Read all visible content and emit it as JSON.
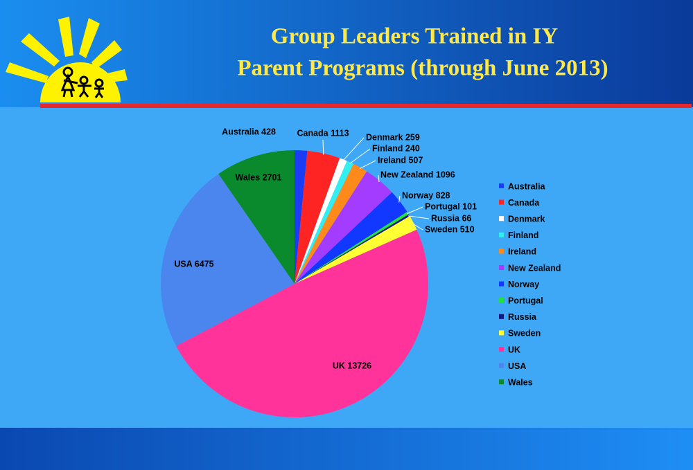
{
  "chart_data": {
    "type": "pie",
    "title": [
      "Group Leaders Trained in IY",
      "Parent Programs (through June 2013)"
    ],
    "categories": [
      "Australia",
      "Canada",
      "Denmark",
      "Finland",
      "Ireland",
      "New Zealand",
      "Norway",
      "Portugal",
      "Russia",
      "Sweden",
      "UK",
      "USA",
      "Wales"
    ],
    "values": [
      428,
      1113,
      259,
      240,
      507,
      1096,
      828,
      101,
      66,
      510,
      13726,
      6475,
      2701
    ],
    "value_labels": [
      "Australia 428",
      "Canada 1113",
      "Denmark 259",
      "Finland 240",
      "Ireland 507",
      "New Zealand 1096",
      "Norway 828",
      "Portugal 101",
      "Russia 66",
      "Sweden 510",
      "UK 13726",
      "USA 6475",
      "Wales 2701"
    ],
    "colors": [
      "#1a3cf5",
      "#ff2424",
      "#ffffff",
      "#33eef0",
      "#ff8a1c",
      "#a43cff",
      "#1238ff",
      "#22e040",
      "#0a1a80",
      "#ffff33",
      "#ff3399",
      "#4a86ee",
      "#0a8a2c"
    ],
    "legend": "right"
  }
}
